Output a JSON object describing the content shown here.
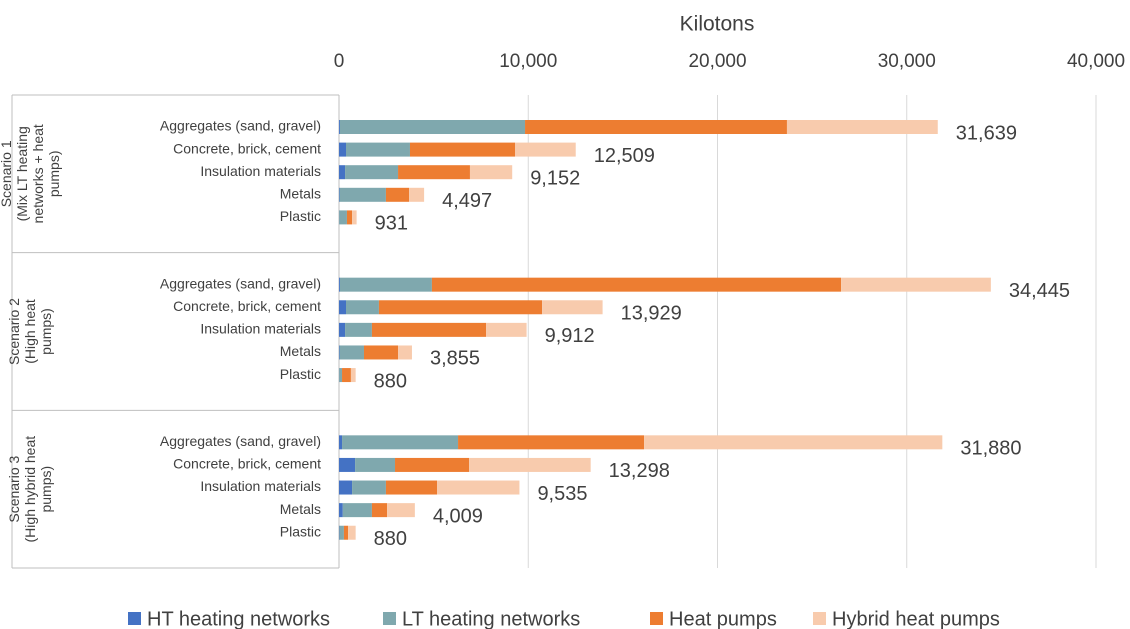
{
  "chart_data": {
    "type": "bar",
    "orientation": "horizontal",
    "stacked": true,
    "x_label": "Kilotons",
    "xlim": [
      0,
      40000
    ],
    "xticks": [
      0,
      {
        "value": 10000,
        "label": "10,000"
      },
      {
        "value": 20000,
        "label": "20,000"
      },
      {
        "value": 30000,
        "label": "30,000"
      },
      {
        "value": 40000,
        "label": "40,000"
      }
    ],
    "grid": true,
    "legend": "bottom",
    "groups": [
      {
        "lines": [
          "Scenario 1",
          "(Mix LT heating",
          "networks + heat",
          "pumps)"
        ]
      },
      {
        "lines": [
          "Scenario 2",
          "(High heat",
          "pumps)"
        ]
      },
      {
        "lines": [
          "Scenario 3",
          "(High hybrid heat",
          "pumps)"
        ]
      }
    ],
    "categories": [
      "Aggregates (sand, gravel)",
      "Concrete, brick, cement",
      "Insulation materials",
      "Metals",
      "Plastic",
      "Aggregates (sand, gravel)",
      "Concrete, brick, cement",
      "Insulation materials",
      "Metals",
      "Plastic",
      "Aggregates (sand, gravel)",
      "Concrete, brick, cement",
      "Insulation materials",
      "Metals",
      "Plastic"
    ],
    "series": [
      {
        "name": "HT heating networks",
        "color": "#4472c4",
        "values": [
          50,
          370,
          320,
          30,
          10,
          50,
          370,
          320,
          30,
          10,
          160,
          850,
          690,
          200,
          20
        ]
      },
      {
        "name": "LT heating networks",
        "color": "#7fa8ae",
        "values": [
          9780,
          3380,
          2800,
          2450,
          410,
          4860,
          1740,
          1420,
          1290,
          150,
          6130,
          2110,
          1790,
          1540,
          240
        ]
      },
      {
        "name": "Heat pumps",
        "color": "#ed7d31",
        "values": [
          13840,
          5550,
          3800,
          1220,
          270,
          21620,
          8620,
          6030,
          1800,
          470,
          9830,
          3910,
          2700,
          800,
          220
        ]
      },
      {
        "name": "Hybrid heat pumps",
        "color": "#f8cbad",
        "values": [
          7969,
          3209,
          2232,
          797,
          241,
          7915,
          3199,
          2142,
          735,
          250,
          15760,
          6428,
          4355,
          1469,
          400
        ]
      }
    ],
    "totals": [
      31639,
      12509,
      9152,
      4497,
      931,
      34445,
      13929,
      9912,
      3855,
      880,
      31880,
      13298,
      9535,
      4009,
      880
    ],
    "value_labels": [
      "31,639",
      "12,509",
      "9,152",
      "4,497",
      "931",
      "34,445",
      "13,929",
      "9,912",
      "3,855",
      "880",
      "31,880",
      "13,298",
      "9,535",
      "4,009",
      "880"
    ]
  }
}
